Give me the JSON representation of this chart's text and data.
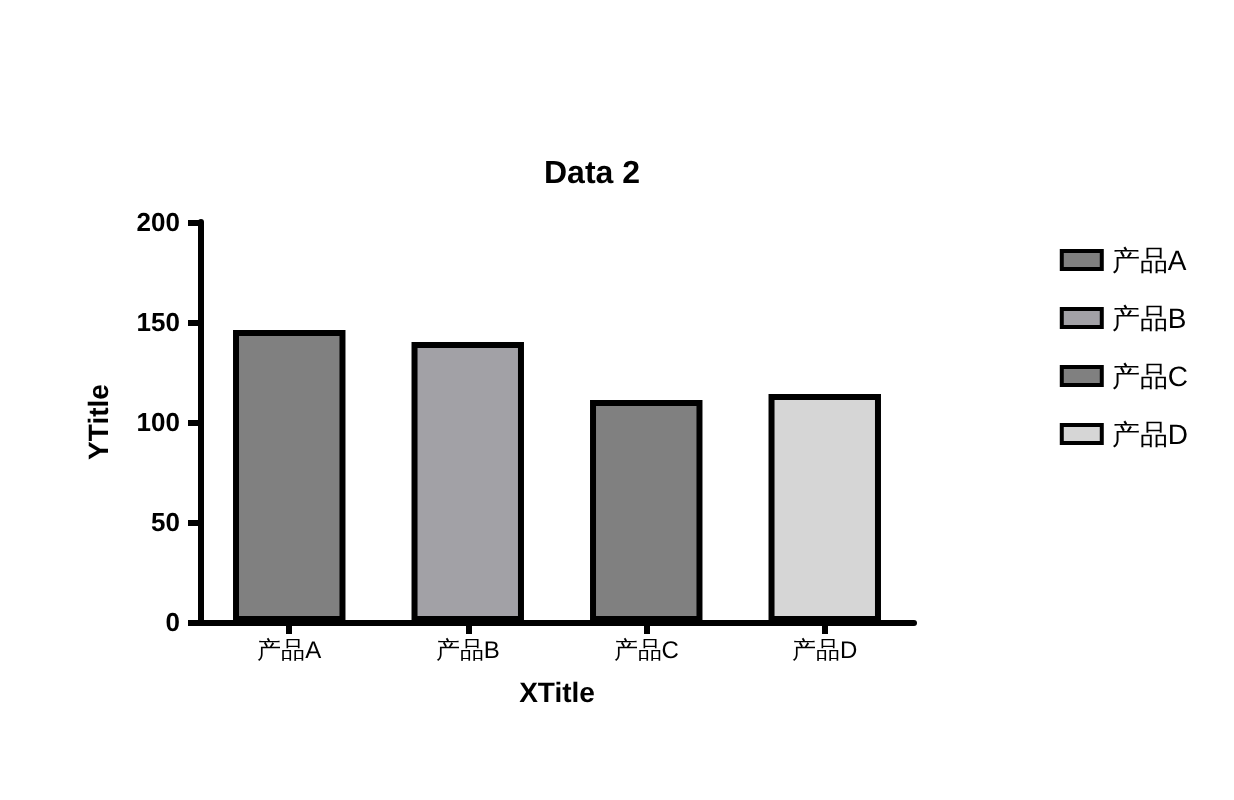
{
  "chart_data": {
    "type": "bar",
    "title": "Data 2",
    "xlabel": "XTitle",
    "ylabel": "YTitle",
    "categories": [
      "产品A",
      "产品B",
      "产品C",
      "产品D"
    ],
    "series": [
      {
        "name": "产品A",
        "color": "#808080",
        "values": [
          146,
          null,
          null,
          null
        ]
      },
      {
        "name": "产品B",
        "color": "#a2a1a6",
        "values": [
          null,
          140,
          null,
          null
        ]
      },
      {
        "name": "产品C",
        "color": "#808080",
        "values": [
          null,
          null,
          111,
          null
        ]
      },
      {
        "name": "产品D",
        "color": "#d6d6d6",
        "values": [
          null,
          null,
          null,
          114
        ]
      }
    ],
    "ylim": [
      0,
      200
    ],
    "yticks": [
      0,
      50,
      100,
      150,
      200
    ],
    "grid": false,
    "legend": "right"
  }
}
